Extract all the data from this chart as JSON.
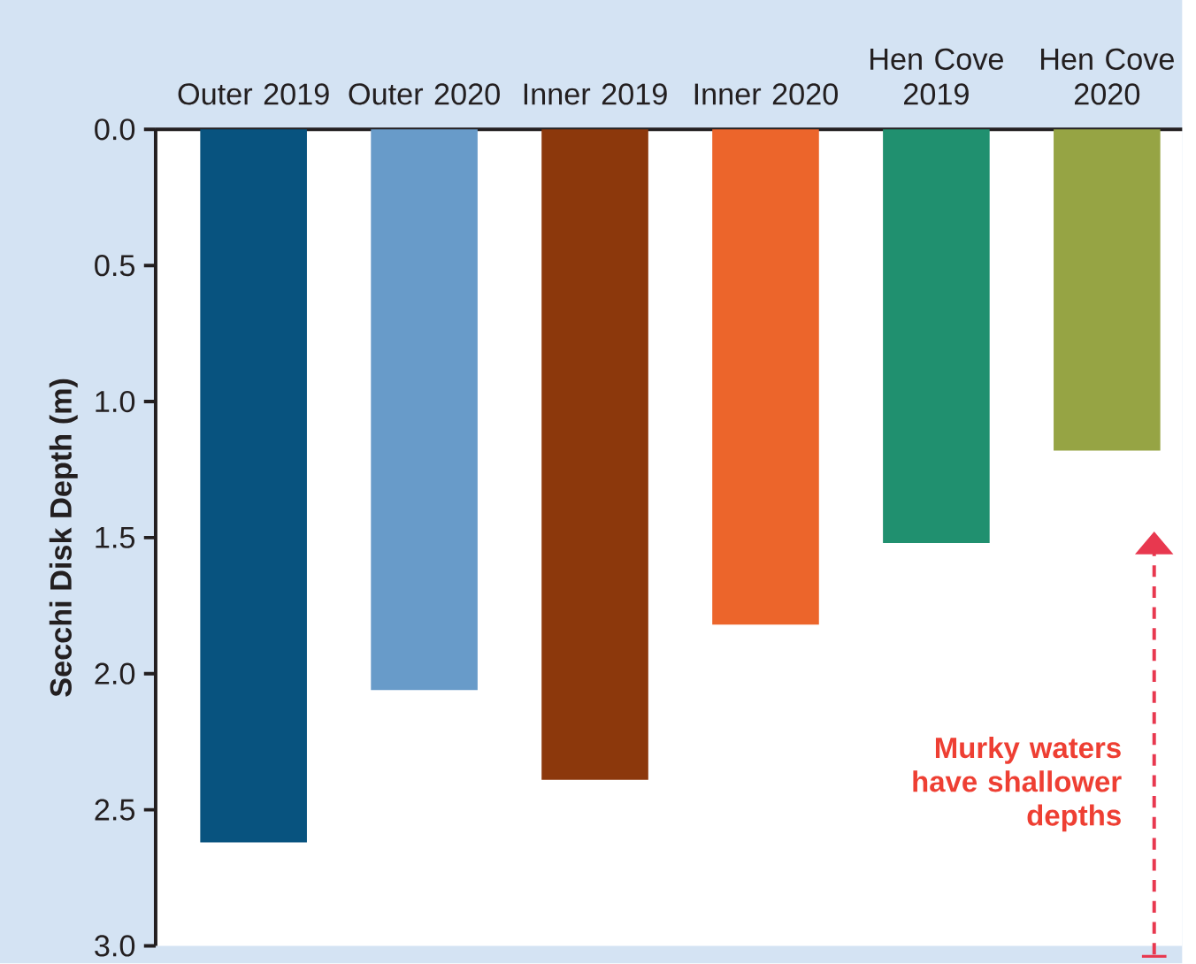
{
  "chart_data": {
    "type": "bar",
    "categories": [
      "Outer 2019",
      "Outer 2020",
      "Inner 2019",
      "Inner 2020",
      "Hen Cove 2019",
      "Hen Cove 2020"
    ],
    "values": [
      2.62,
      2.06,
      2.39,
      1.82,
      1.52,
      1.18
    ],
    "colors": [
      "#08537f",
      "#689bc9",
      "#8c380c",
      "#ec652b",
      "#20906f",
      "#96a444"
    ],
    "ylabel": "Secchi Disk Depth (m)",
    "ylim": [
      3,
      0
    ],
    "yticks": [
      {
        "value": 0,
        "label": "0.0"
      },
      {
        "value": 0.5,
        "label": "0.5"
      },
      {
        "value": 1,
        "label": "1.0"
      },
      {
        "value": 1.5,
        "label": "1.5"
      },
      {
        "value": 2,
        "label": "2.0"
      },
      {
        "value": 2.5,
        "label": "2.5"
      },
      {
        "value": 3,
        "label": "3.0"
      }
    ],
    "annotations": [
      "Murky waters have shallower depths"
    ]
  }
}
